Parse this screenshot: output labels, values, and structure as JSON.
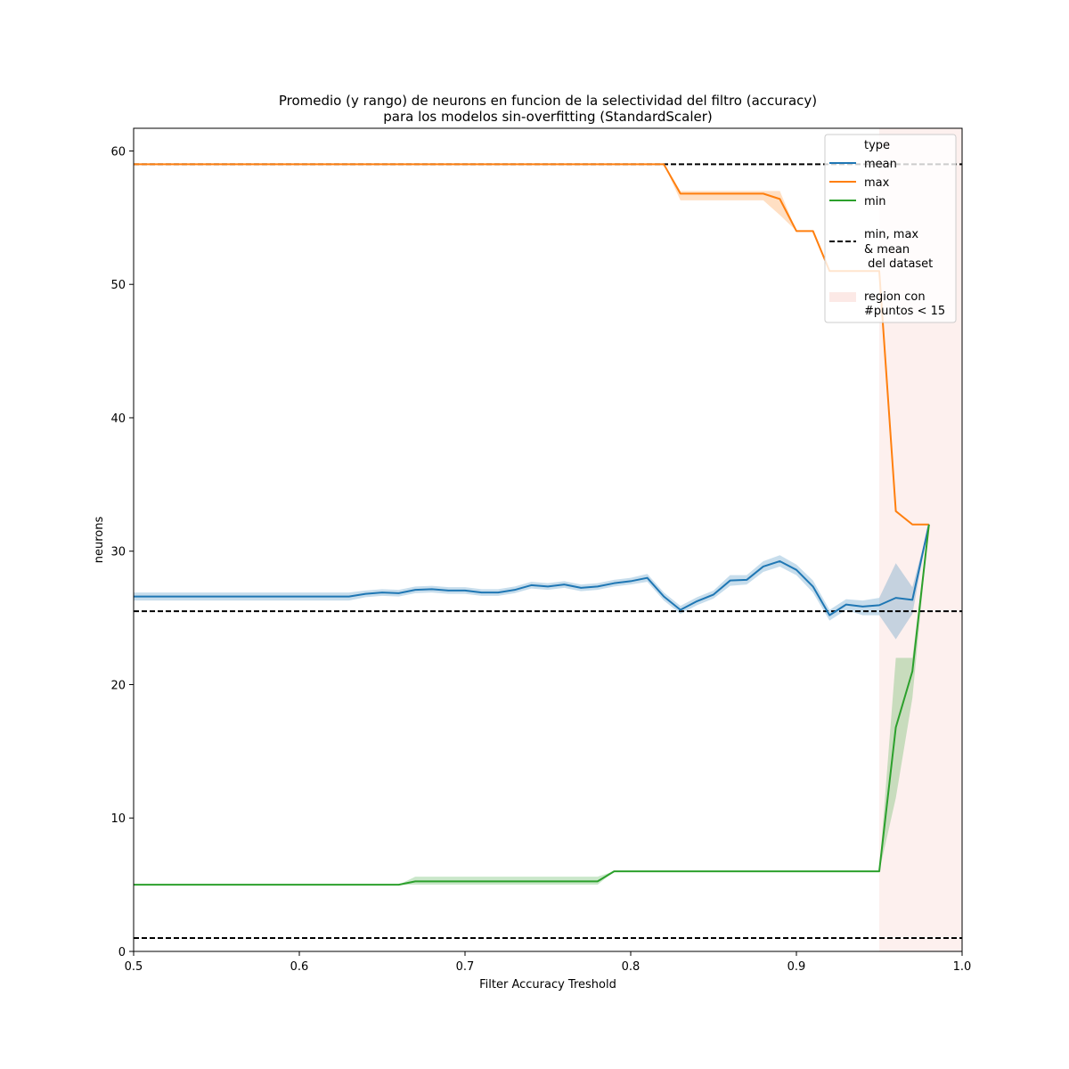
{
  "chart_data": {
    "type": "line",
    "title_lines": [
      "Promedio (y rango) de neurons en funcion de la selectividad del filtro (accuracy)",
      "para los modelos sin-overfitting (StandardScaler)"
    ],
    "xlabel": "Filter Accuracy Treshold",
    "ylabel": "neurons",
    "xlim": [
      0.5,
      1.0
    ],
    "ylim": [
      0,
      61.7
    ],
    "xticks": [
      0.5,
      0.6,
      0.7,
      0.8,
      0.9,
      1.0
    ],
    "xtick_labels": [
      "0.5",
      "0.6",
      "0.7",
      "0.8",
      "0.9",
      "1.0"
    ],
    "yticks": [
      0,
      10,
      20,
      30,
      40,
      50,
      60
    ],
    "ytick_labels": [
      "0",
      "10",
      "20",
      "30",
      "40",
      "50",
      "60"
    ],
    "grid": false,
    "legend_placement": "top-right",
    "legend_title": "type",
    "legend_entries": {
      "mean": "mean",
      "max": "max",
      "min": "min",
      "dataset_lines": [
        "min, max",
        "& mean",
        " del dataset"
      ],
      "region": [
        "region con",
        "#puntos < 15"
      ]
    },
    "colors": {
      "mean": "#1f77b4",
      "max": "#ff7f0e",
      "min": "#2ca02c",
      "dataset": "#000000",
      "region": "#fbe4e0"
    },
    "dataset_reference_lines": {
      "min": 1,
      "max": 59,
      "mean": 25.5
    },
    "low_points_region": {
      "x_start": 0.95,
      "x_end": 1.0
    },
    "series": [
      {
        "name": "mean",
        "points": [
          [
            0.5,
            26.6
          ],
          [
            0.55,
            26.6
          ],
          [
            0.6,
            26.6
          ],
          [
            0.63,
            26.6
          ],
          [
            0.64,
            26.8
          ],
          [
            0.65,
            26.9
          ],
          [
            0.66,
            26.85
          ],
          [
            0.67,
            27.1
          ],
          [
            0.68,
            27.15
          ],
          [
            0.69,
            27.05
          ],
          [
            0.7,
            27.05
          ],
          [
            0.71,
            26.9
          ],
          [
            0.72,
            26.9
          ],
          [
            0.73,
            27.1
          ],
          [
            0.74,
            27.45
          ],
          [
            0.75,
            27.35
          ],
          [
            0.76,
            27.5
          ],
          [
            0.77,
            27.25
          ],
          [
            0.78,
            27.35
          ],
          [
            0.79,
            27.6
          ],
          [
            0.8,
            27.75
          ],
          [
            0.81,
            28.0
          ],
          [
            0.82,
            26.6
          ],
          [
            0.83,
            25.6
          ],
          [
            0.84,
            26.25
          ],
          [
            0.85,
            26.75
          ],
          [
            0.86,
            27.8
          ],
          [
            0.87,
            27.85
          ],
          [
            0.88,
            28.85
          ],
          [
            0.89,
            29.25
          ],
          [
            0.9,
            28.6
          ],
          [
            0.91,
            27.35
          ],
          [
            0.92,
            25.2
          ],
          [
            0.93,
            26.0
          ],
          [
            0.94,
            25.85
          ],
          [
            0.95,
            25.95
          ],
          [
            0.96,
            26.5
          ],
          [
            0.97,
            26.35
          ],
          [
            0.98,
            32.0
          ]
        ],
        "band_lower": [
          [
            0.5,
            26.3
          ],
          [
            0.55,
            26.3
          ],
          [
            0.6,
            26.3
          ],
          [
            0.63,
            26.3
          ],
          [
            0.64,
            26.55
          ],
          [
            0.65,
            26.65
          ],
          [
            0.66,
            26.6
          ],
          [
            0.67,
            26.85
          ],
          [
            0.68,
            26.9
          ],
          [
            0.69,
            26.8
          ],
          [
            0.7,
            26.8
          ],
          [
            0.71,
            26.65
          ],
          [
            0.72,
            26.65
          ],
          [
            0.73,
            26.85
          ],
          [
            0.74,
            27.2
          ],
          [
            0.75,
            27.1
          ],
          [
            0.76,
            27.25
          ],
          [
            0.77,
            27.0
          ],
          [
            0.78,
            27.1
          ],
          [
            0.79,
            27.35
          ],
          [
            0.8,
            27.5
          ],
          [
            0.81,
            27.7
          ],
          [
            0.82,
            26.3
          ],
          [
            0.83,
            25.3
          ],
          [
            0.84,
            25.95
          ],
          [
            0.85,
            26.45
          ],
          [
            0.86,
            27.4
          ],
          [
            0.87,
            27.5
          ],
          [
            0.88,
            28.45
          ],
          [
            0.89,
            28.85
          ],
          [
            0.9,
            28.2
          ],
          [
            0.91,
            26.9
          ],
          [
            0.92,
            24.8
          ],
          [
            0.93,
            25.6
          ],
          [
            0.94,
            25.2
          ],
          [
            0.95,
            25.2
          ],
          [
            0.96,
            23.4
          ],
          [
            0.97,
            25.3
          ],
          [
            0.98,
            32.0
          ]
        ],
        "band_upper": [
          [
            0.5,
            26.9
          ],
          [
            0.55,
            26.9
          ],
          [
            0.6,
            26.9
          ],
          [
            0.63,
            26.9
          ],
          [
            0.64,
            27.05
          ],
          [
            0.65,
            27.15
          ],
          [
            0.66,
            27.1
          ],
          [
            0.67,
            27.35
          ],
          [
            0.68,
            27.4
          ],
          [
            0.69,
            27.3
          ],
          [
            0.7,
            27.3
          ],
          [
            0.71,
            27.15
          ],
          [
            0.72,
            27.15
          ],
          [
            0.73,
            27.35
          ],
          [
            0.74,
            27.7
          ],
          [
            0.75,
            27.6
          ],
          [
            0.76,
            27.75
          ],
          [
            0.77,
            27.5
          ],
          [
            0.78,
            27.6
          ],
          [
            0.79,
            27.85
          ],
          [
            0.8,
            28.0
          ],
          [
            0.81,
            28.3
          ],
          [
            0.82,
            26.9
          ],
          [
            0.83,
            25.9
          ],
          [
            0.84,
            26.55
          ],
          [
            0.85,
            27.05
          ],
          [
            0.86,
            28.2
          ],
          [
            0.87,
            28.2
          ],
          [
            0.88,
            29.25
          ],
          [
            0.89,
            29.7
          ],
          [
            0.9,
            29.0
          ],
          [
            0.91,
            27.8
          ],
          [
            0.92,
            25.6
          ],
          [
            0.93,
            26.4
          ],
          [
            0.94,
            26.3
          ],
          [
            0.95,
            26.5
          ],
          [
            0.96,
            29.1
          ],
          [
            0.97,
            27.3
          ],
          [
            0.98,
            32.0
          ]
        ]
      },
      {
        "name": "max",
        "points": [
          [
            0.5,
            59.0
          ],
          [
            0.82,
            59.0
          ],
          [
            0.83,
            56.8
          ],
          [
            0.87,
            56.8
          ],
          [
            0.88,
            56.8
          ],
          [
            0.89,
            56.4
          ],
          [
            0.9,
            54.0
          ],
          [
            0.91,
            54.0
          ],
          [
            0.92,
            51.0
          ],
          [
            0.93,
            51.0
          ],
          [
            0.94,
            51.0
          ],
          [
            0.95,
            51.0
          ],
          [
            0.96,
            33.0
          ],
          [
            0.97,
            32.0
          ],
          [
            0.98,
            32.0
          ]
        ],
        "band_lower": [
          [
            0.5,
            59.0
          ],
          [
            0.82,
            59.0
          ],
          [
            0.83,
            56.3
          ],
          [
            0.87,
            56.3
          ],
          [
            0.88,
            56.3
          ],
          [
            0.89,
            55.2
          ],
          [
            0.9,
            54.0
          ],
          [
            0.91,
            54.0
          ],
          [
            0.92,
            51.0
          ],
          [
            0.93,
            51.0
          ],
          [
            0.94,
            51.0
          ],
          [
            0.95,
            51.0
          ],
          [
            0.96,
            33.0
          ],
          [
            0.97,
            32.0
          ],
          [
            0.98,
            32.0
          ]
        ],
        "band_upper": [
          [
            0.5,
            59.0
          ],
          [
            0.82,
            59.0
          ],
          [
            0.83,
            57.0
          ],
          [
            0.87,
            57.0
          ],
          [
            0.88,
            57.0
          ],
          [
            0.89,
            57.0
          ],
          [
            0.9,
            54.0
          ],
          [
            0.91,
            54.0
          ],
          [
            0.92,
            51.0
          ],
          [
            0.93,
            51.0
          ],
          [
            0.94,
            51.0
          ],
          [
            0.95,
            51.0
          ],
          [
            0.96,
            33.0
          ],
          [
            0.97,
            32.0
          ],
          [
            0.98,
            32.0
          ]
        ]
      },
      {
        "name": "min",
        "points": [
          [
            0.5,
            5.0
          ],
          [
            0.66,
            5.0
          ],
          [
            0.67,
            5.25
          ],
          [
            0.78,
            5.25
          ],
          [
            0.79,
            6.0
          ],
          [
            0.95,
            6.0
          ],
          [
            0.96,
            16.8
          ],
          [
            0.97,
            21.0
          ],
          [
            0.98,
            32.0
          ]
        ],
        "band_lower": [
          [
            0.5,
            5.0
          ],
          [
            0.66,
            5.0
          ],
          [
            0.67,
            5.0
          ],
          [
            0.78,
            5.0
          ],
          [
            0.79,
            6.0
          ],
          [
            0.95,
            6.0
          ],
          [
            0.96,
            11.5
          ],
          [
            0.97,
            19.0
          ],
          [
            0.98,
            32.0
          ]
        ],
        "band_upper": [
          [
            0.5,
            5.0
          ],
          [
            0.66,
            5.0
          ],
          [
            0.67,
            5.6
          ],
          [
            0.78,
            5.6
          ],
          [
            0.79,
            6.0
          ],
          [
            0.95,
            6.0
          ],
          [
            0.96,
            22.0
          ],
          [
            0.97,
            22.0
          ],
          [
            0.98,
            32.0
          ]
        ]
      }
    ]
  }
}
